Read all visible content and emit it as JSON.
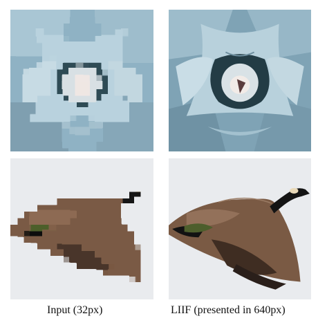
{
  "captions": {
    "left": "Input (32px)",
    "right": "LIIF (presented in 640px)"
  },
  "palette": {
    "succulent_light": "#b9d2de",
    "succulent_mid": "#8fb2c4",
    "succulent_dark": "#2f4b55",
    "succulent_center": "#e8e2de",
    "sky": "#e9ebee",
    "goose_body": "#7a5a44",
    "goose_dark": "#2a1f1a",
    "goose_neck": "#141414",
    "goose_cheek": "#e9d9b8",
    "goose_belly": "#4d5e2c"
  }
}
